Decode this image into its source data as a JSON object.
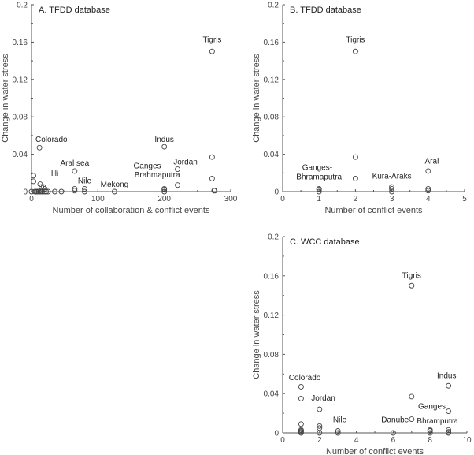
{
  "chart_data": [
    {
      "type": "scatter",
      "title": "A. TFDD database",
      "xlabel": "Number of collaboration & conflict events",
      "ylabel": "Change in water stress",
      "xlim": [
        0,
        300
      ],
      "ylim": [
        0,
        0.2
      ],
      "xticks": [
        0,
        100,
        200,
        300
      ],
      "xtick_labels": [
        "0",
        "100",
        "200",
        "300"
      ],
      "yticks": [
        0,
        0.04,
        0.08,
        0.12,
        0.16,
        0.2
      ],
      "ytick_labels": [
        "0",
        "0.04",
        "0.08",
        "0.12",
        "0.16",
        "0.2"
      ],
      "points": [
        [
          272,
          0.15
        ],
        [
          272,
          0.037
        ],
        [
          272,
          0.014
        ],
        [
          275,
          0.001
        ],
        [
          276,
          0.001
        ],
        [
          200,
          0.048
        ],
        [
          220,
          0.024
        ],
        [
          220,
          0.007
        ],
        [
          200,
          0.003
        ],
        [
          200,
          0.002
        ],
        [
          200,
          0.0
        ],
        [
          125,
          0.0
        ],
        [
          80,
          0.003
        ],
        [
          80,
          0.0
        ],
        [
          65,
          0.022
        ],
        [
          65,
          0.003
        ],
        [
          65,
          0.001
        ],
        [
          12,
          0.047
        ],
        [
          3,
          0.017
        ],
        [
          3,
          0.011
        ],
        [
          13,
          0.008
        ],
        [
          15,
          0.005
        ],
        [
          18,
          0.005
        ],
        [
          20,
          0.003
        ],
        [
          0,
          0
        ],
        [
          5,
          0
        ],
        [
          7,
          0
        ],
        [
          9,
          0
        ],
        [
          11,
          0
        ],
        [
          13,
          0
        ],
        [
          16,
          0
        ],
        [
          19,
          0
        ],
        [
          22,
          0
        ],
        [
          25,
          0
        ],
        [
          35,
          0
        ],
        [
          45,
          0
        ]
      ],
      "annotations": [
        {
          "text": "Tigris",
          "x": 272,
          "y": 0.16
        },
        {
          "text": "Indus",
          "x": 200,
          "y": 0.053
        },
        {
          "text": "Jordan",
          "x": 220,
          "y": 0.029
        },
        {
          "text": "Ganges-",
          "x": 200,
          "y": 0.025
        },
        {
          "text": "Brahmaputra",
          "x": 200,
          "y": 0.015
        },
        {
          "text": "Mekong",
          "x": 125,
          "y": 0.005
        },
        {
          "text": "Nile",
          "x": 80,
          "y": 0.009
        },
        {
          "text": "Aral sea",
          "x": 65,
          "y": 0.028
        },
        {
          "text": "Illi",
          "x": 35,
          "y": 0.017
        },
        {
          "text": "Colorado",
          "x": 30,
          "y": 0.053
        }
      ]
    },
    {
      "type": "scatter",
      "title": "B. TFDD database",
      "xlabel": "Number of conflict events",
      "ylabel": "Change in water stress",
      "xlim": [
        0,
        5
      ],
      "ylim": [
        0,
        0.2
      ],
      "xticks": [
        0,
        1,
        2,
        3,
        4,
        5
      ],
      "xtick_labels": [
        "0",
        "1",
        "2",
        "3",
        "4",
        "5"
      ],
      "yticks": [
        0,
        0.04,
        0.08,
        0.12,
        0.16,
        0.2
      ],
      "ytick_labels": [
        "0",
        "0.04",
        "0.08",
        "0.12",
        "0.16",
        "0.2"
      ],
      "points": [
        [
          2,
          0.15
        ],
        [
          2,
          0.037
        ],
        [
          2,
          0.014
        ],
        [
          1,
          0.003
        ],
        [
          1,
          0.002
        ],
        [
          1,
          0.0
        ],
        [
          3,
          0.005
        ],
        [
          3,
          0.003
        ],
        [
          3,
          0.0
        ],
        [
          4,
          0.022
        ],
        [
          4,
          0.003
        ],
        [
          4,
          0.001
        ]
      ],
      "annotations": [
        {
          "text": "Tigris",
          "x": 2,
          "y": 0.16
        },
        {
          "text": "Ganges-",
          "x": 0.95,
          "y": 0.023
        },
        {
          "text": "Bhramaputra",
          "x": 1.0,
          "y": 0.013
        },
        {
          "text": "Kura-Araks",
          "x": 3.0,
          "y": 0.014
        },
        {
          "text": "Aral",
          "x": 4.1,
          "y": 0.03
        }
      ]
    },
    {
      "type": "scatter",
      "title": "C. WCC database",
      "xlabel": "Number of conflict events",
      "ylabel": "Change in water stress",
      "xlim": [
        0,
        10
      ],
      "ylim": [
        0,
        0.2
      ],
      "xticks": [
        0,
        2,
        4,
        6,
        8,
        10
      ],
      "xtick_labels": [
        "0",
        "2",
        "4",
        "6",
        "8",
        "10"
      ],
      "yticks": [
        0,
        0.04,
        0.08,
        0.12,
        0.16,
        0.2
      ],
      "ytick_labels": [
        "0",
        "0.04",
        "0.08",
        "0.12",
        "0.16",
        "0.2"
      ],
      "points": [
        [
          7,
          0.15
        ],
        [
          7,
          0.037
        ],
        [
          7,
          0.014
        ],
        [
          9,
          0.048
        ],
        [
          9,
          0.022
        ],
        [
          9,
          0.003
        ],
        [
          9,
          0.001
        ],
        [
          9,
          0.0
        ],
        [
          1,
          0.047
        ],
        [
          1,
          0.035
        ],
        [
          1,
          0.009
        ],
        [
          1,
          0.003
        ],
        [
          1,
          0.002
        ],
        [
          1,
          0.001
        ],
        [
          1,
          0.0
        ],
        [
          2,
          0.024
        ],
        [
          2,
          0.007
        ],
        [
          2,
          0.005
        ],
        [
          2,
          0.0
        ],
        [
          3,
          0.002
        ],
        [
          3,
          0.0
        ],
        [
          6,
          0.0
        ],
        [
          8,
          0.003
        ],
        [
          8,
          0.002
        ],
        [
          8,
          0.0
        ]
      ],
      "annotations": [
        {
          "text": "Tigris",
          "x": 7,
          "y": 0.158
        },
        {
          "text": "Indus",
          "x": 8.9,
          "y": 0.056
        },
        {
          "text": "Colorado",
          "x": 1.2,
          "y": 0.054
        },
        {
          "text": "Jordan",
          "x": 2.2,
          "y": 0.033
        },
        {
          "text": "Nile",
          "x": 3.1,
          "y": 0.011
        },
        {
          "text": "Danube",
          "x": 6.1,
          "y": 0.011
        },
        {
          "text": "Ganges",
          "x": 8.1,
          "y": 0.022
        },
        {
          "text": "Bhramputra",
          "x": 8.4,
          "y": 0.012
        }
      ]
    }
  ]
}
